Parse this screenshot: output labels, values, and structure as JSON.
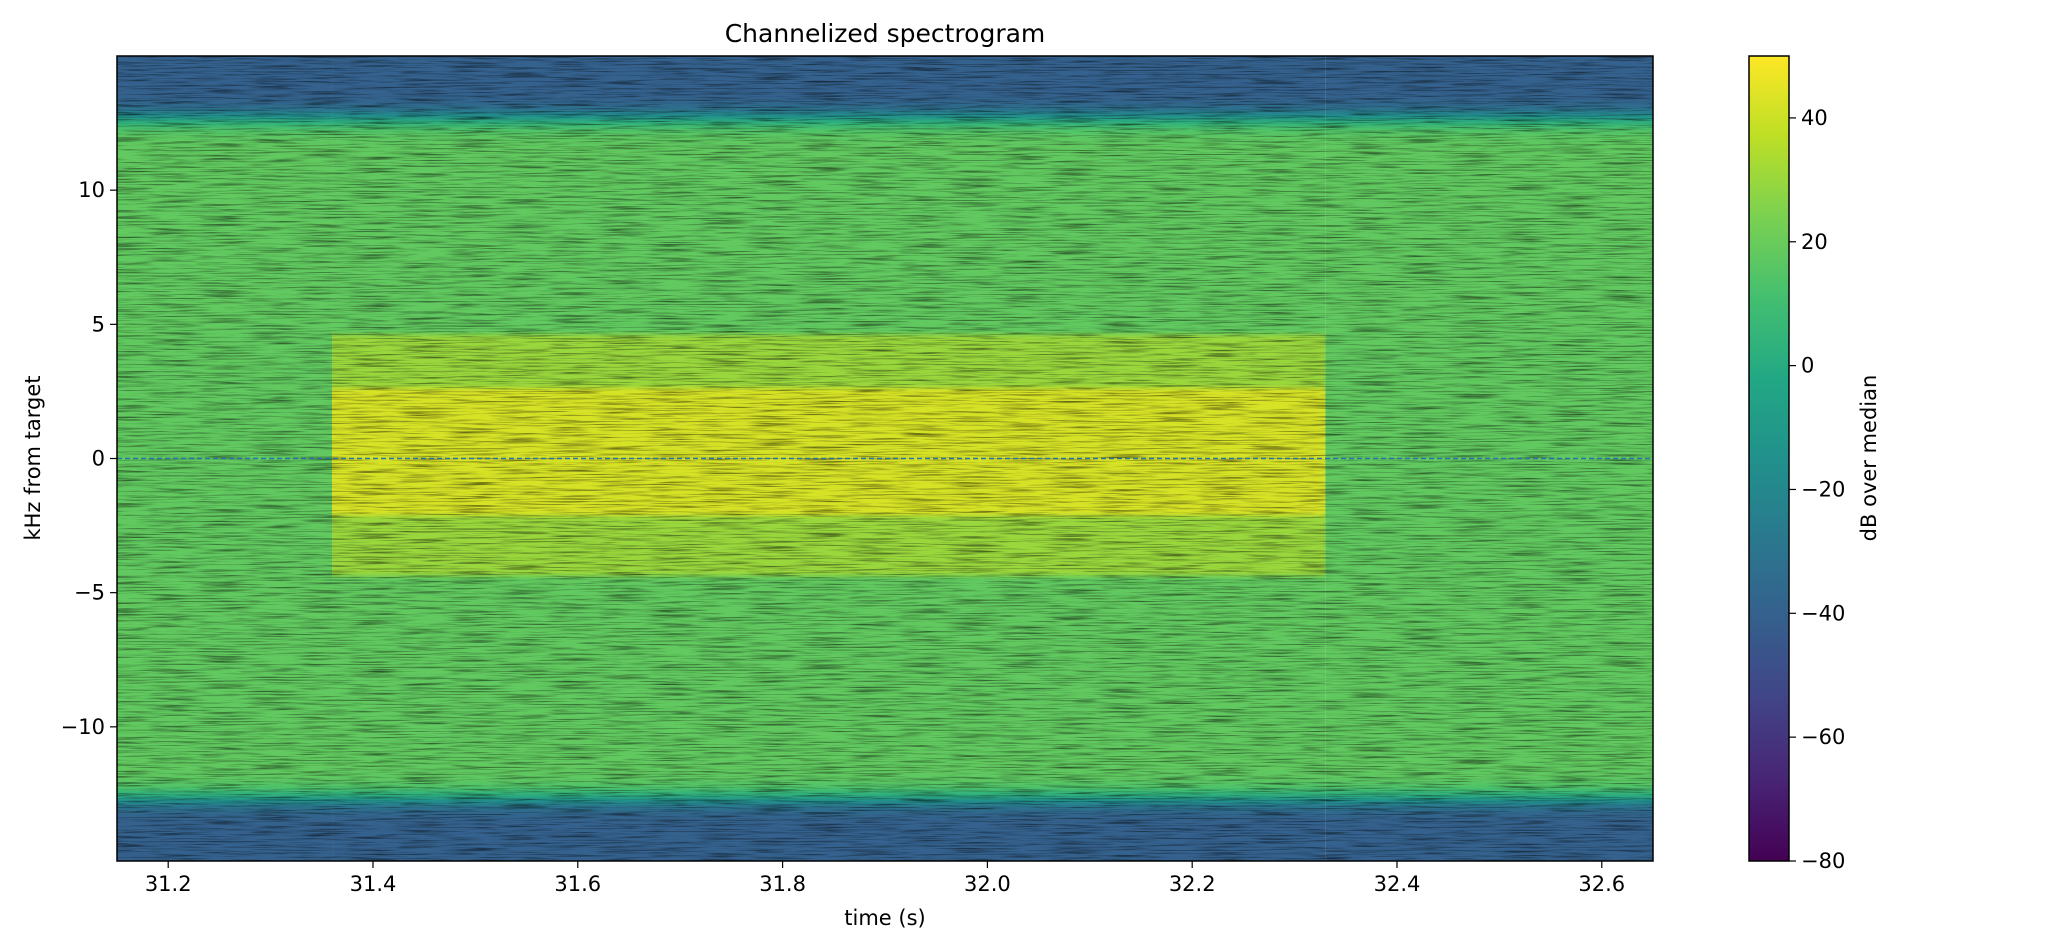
{
  "chart_data": {
    "type": "heatmap",
    "title": "Channelized spectrogram",
    "xlabel": "time (s)",
    "ylabel": "kHz from target",
    "xlim": [
      31.15,
      32.65
    ],
    "ylim": [
      -15,
      15
    ],
    "x_ticks": [
      "31.2",
      "31.4",
      "31.6",
      "31.8",
      "32.0",
      "32.2",
      "32.4",
      "32.6"
    ],
    "y_ticks": [
      "10",
      "5",
      "0",
      "−5",
      "−10"
    ],
    "colormap": "viridis",
    "colorbar": {
      "label": "dB over median",
      "range": [
        -80,
        50
      ],
      "ticks": [
        "40",
        "20",
        "0",
        "−20",
        "−40",
        "−60",
        "−80"
      ]
    },
    "reference_line": {
      "y": 0,
      "style": "dashed"
    },
    "burst": {
      "t_start": 31.36,
      "t_end": 32.33,
      "core_khz": [
        -2,
        2.5
      ],
      "sidelobe_khz": [
        -4.3,
        4.5
      ]
    },
    "band_edges_khz": [
      -12.7,
      12.7
    ],
    "levels_db": {
      "burst_core": 42,
      "burst_sidelobe": 30,
      "passband": 18,
      "band_edge": -40
    },
    "grid": false,
    "legend": "none"
  }
}
